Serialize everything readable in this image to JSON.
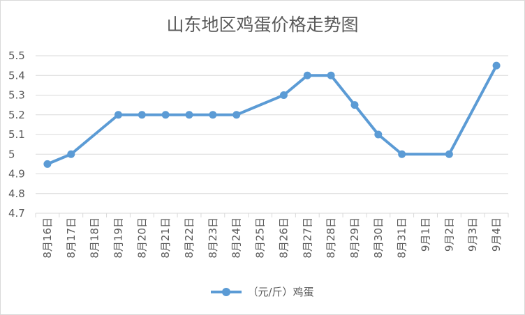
{
  "chart_data": {
    "type": "line",
    "title": "山东地区鸡蛋价格走势图",
    "categories": [
      "8月16日",
      "8月17日",
      "8月18日",
      "8月19日",
      "8月20日",
      "8月21日",
      "8月22日",
      "8月23日",
      "8月24日",
      "8月25日",
      "8月26日",
      "8月27日",
      "8月28日",
      "8月29日",
      "8月30日",
      "8月31日",
      "9月1日",
      "9月2日",
      "9月3日",
      "9月4日"
    ],
    "series": [
      {
        "name": "（元/斤）鸡蛋",
        "values": [
          4.95,
          5.0,
          null,
          5.2,
          5.2,
          5.2,
          5.2,
          5.2,
          5.2,
          null,
          5.3,
          5.4,
          5.4,
          5.25,
          5.1,
          5.0,
          null,
          5.0,
          null,
          5.45
        ],
        "color": "#5b9bd5"
      }
    ],
    "ylim": [
      4.7,
      5.5
    ],
    "yticks": [
      "4.7",
      "4.8",
      "4.9",
      "5",
      "5.1",
      "5.2",
      "5.3",
      "5.4",
      "5.5"
    ],
    "grid": true,
    "legend_position": "bottom"
  }
}
